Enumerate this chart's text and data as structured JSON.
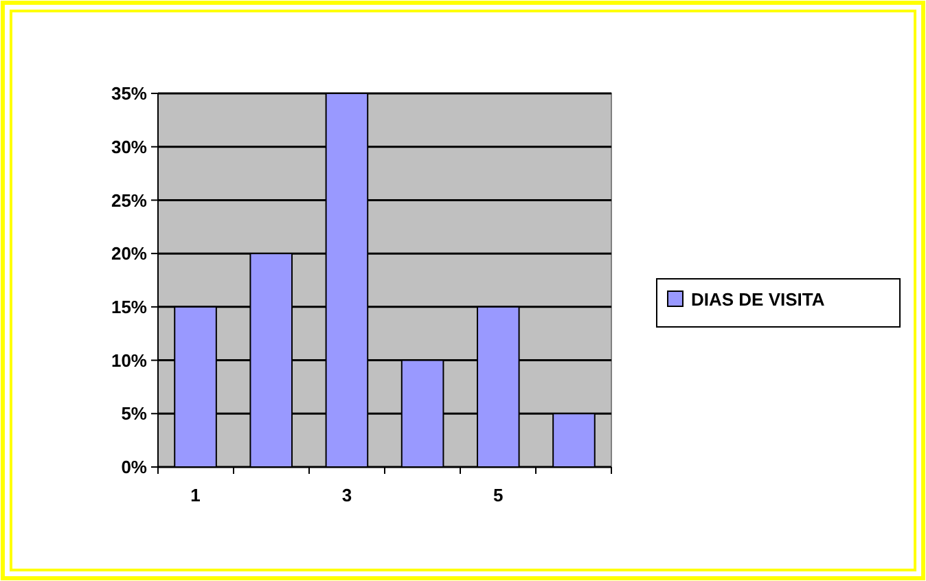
{
  "chart_data": {
    "type": "bar",
    "categories": [
      "1",
      null,
      "3",
      null,
      "5",
      null
    ],
    "series": [
      {
        "name": "DIAS DE VISITA",
        "color": "#9999ff",
        "values": [
          15,
          20,
          35,
          10,
          15,
          5
        ]
      }
    ],
    "ylim": [
      0,
      35
    ],
    "yticks": [
      {
        "value": 0,
        "label": "0%"
      },
      {
        "value": 5,
        "label": "5%"
      },
      {
        "value": 10,
        "label": "10%"
      },
      {
        "value": 15,
        "label": "15%"
      },
      {
        "value": 20,
        "label": "20%"
      },
      {
        "value": 25,
        "label": "25%"
      },
      {
        "value": 30,
        "label": "30%"
      },
      {
        "value": 35,
        "label": "35%"
      }
    ],
    "grid": "y",
    "legend": "right"
  }
}
